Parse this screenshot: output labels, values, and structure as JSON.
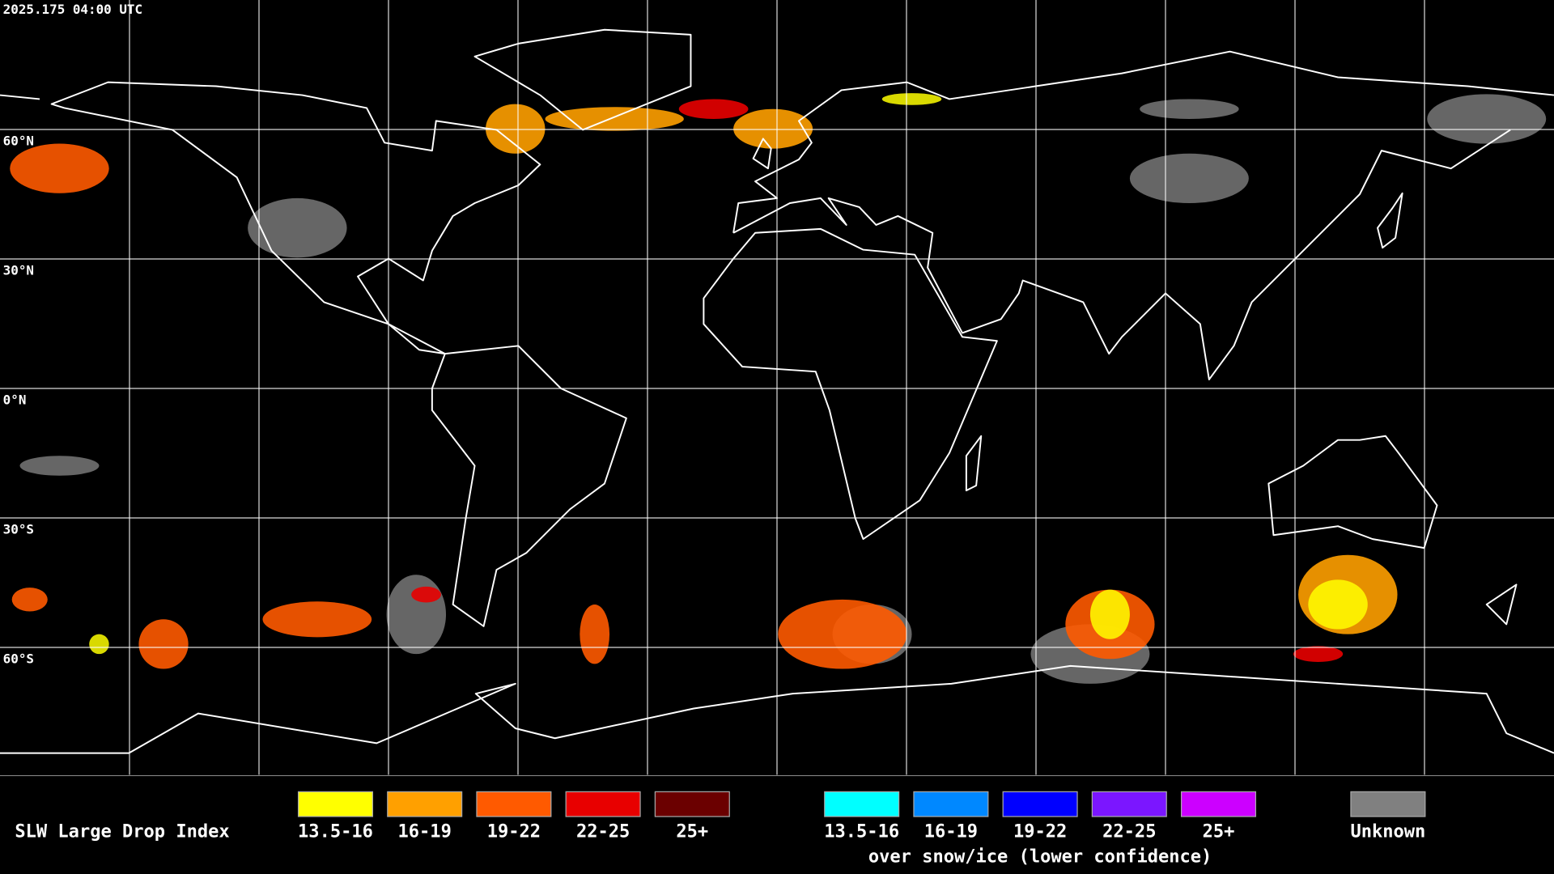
{
  "header": {
    "timestamp": "2025.175 04:00 UTC"
  },
  "map": {
    "latitude_labels": [
      "60°N",
      "30°N",
      "0°N",
      "30°S",
      "60°S"
    ]
  },
  "legend": {
    "title": "SLW Large Drop Index",
    "groups": [
      {
        "items": [
          {
            "label": "13.5-16",
            "color": "#ffff00"
          },
          {
            "label": "16-19",
            "color": "#ffa000"
          },
          {
            "label": "19-22",
            "color": "#ff5a00"
          },
          {
            "label": "22-25",
            "color": "#e80000"
          },
          {
            "label": "25+",
            "color": "#6b0000"
          }
        ]
      },
      {
        "items": [
          {
            "label": "13.5-16",
            "color": "#00ffff"
          },
          {
            "label": "16-19",
            "color": "#0088ff"
          },
          {
            "label": "19-22",
            "color": "#0000ff"
          },
          {
            "label": "22-25",
            "color": "#7b16ff"
          },
          {
            "label": "25+",
            "color": "#cc00ff"
          }
        ],
        "caption": "over snow/ice (lower confidence)"
      },
      {
        "items": [
          {
            "label": "Unknown",
            "color": "#808080"
          }
        ]
      }
    ]
  }
}
